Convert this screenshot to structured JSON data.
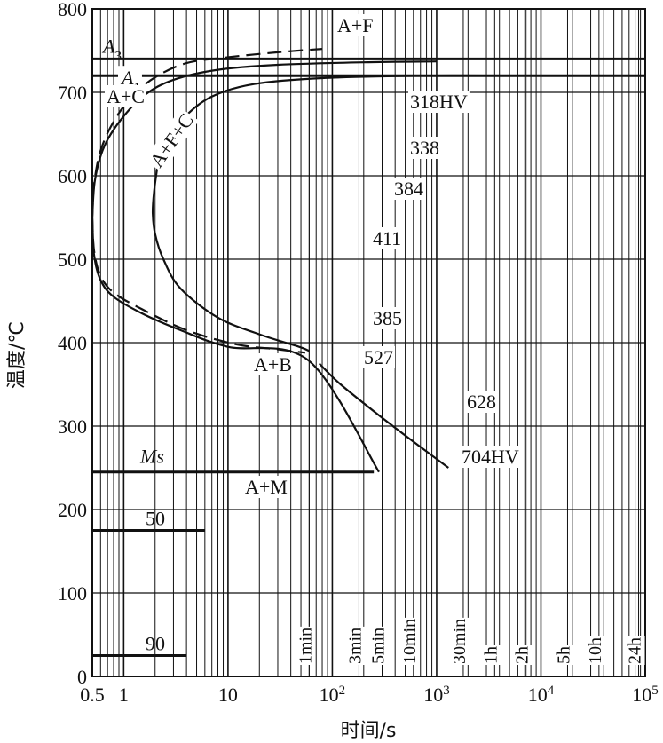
{
  "chart_data": {
    "type": "line",
    "x_scale": "log",
    "xlim": [
      0.5,
      100000
    ],
    "ylim": [
      0,
      800
    ],
    "xlabel": "时间/s",
    "ylabel": "温度/℃",
    "x_tick_labels": [
      {
        "x": 0.5,
        "label": "0.5"
      },
      {
        "x": 1,
        "label": "1"
      },
      {
        "x": 10,
        "label": "10"
      },
      {
        "x": 100,
        "label": "10",
        "sup": "2"
      },
      {
        "x": 1000,
        "label": "10",
        "sup": "3"
      },
      {
        "x": 10000,
        "label": "10",
        "sup": "4"
      },
      {
        "x": 100000,
        "label": "10",
        "sup": "5"
      }
    ],
    "y_ticks": [
      0,
      100,
      200,
      300,
      400,
      500,
      600,
      700,
      800
    ],
    "time_marks": [
      {
        "x": 60,
        "label": "1min"
      },
      {
        "x": 180,
        "label": "3min"
      },
      {
        "x": 300,
        "label": "5min"
      },
      {
        "x": 600,
        "label": "10min"
      },
      {
        "x": 1800,
        "label": "30min"
      },
      {
        "x": 3600,
        "label": "1h"
      },
      {
        "x": 7200,
        "label": "2h"
      },
      {
        "x": 18000,
        "label": "5h"
      },
      {
        "x": 36000,
        "label": "10h"
      },
      {
        "x": 86400,
        "label": "24h"
      }
    ],
    "horizontal_lines": [
      {
        "name": "A3",
        "base": "A",
        "sub": "3",
        "y": 740,
        "x_from": 0.5,
        "x_to": 100000
      },
      {
        "name": "A1",
        "base": "A",
        "sub": "1",
        "y": 720,
        "x_from": 0.5,
        "x_to": 100000
      },
      {
        "name": "Ms",
        "y": 245,
        "x_from": 0.5,
        "x_to": 250
      },
      {
        "name": "50",
        "y": 175,
        "x_from": 0.5,
        "x_to": 6
      },
      {
        "name": "90",
        "y": 25,
        "x_from": 0.5,
        "x_to": 4
      }
    ],
    "series": [
      {
        "style": "dashed",
        "points": [
          [
            0.5,
            550
          ],
          [
            0.52,
            590
          ],
          [
            0.6,
            630
          ],
          [
            0.8,
            665
          ],
          [
            1.2,
            695
          ],
          [
            2,
            718
          ],
          [
            4,
            735
          ],
          [
            10,
            742
          ],
          [
            30,
            748
          ],
          [
            80,
            752
          ]
        ]
      },
      {
        "style": "dashed",
        "points": [
          [
            0.5,
            550
          ],
          [
            0.52,
            510
          ],
          [
            0.6,
            480
          ],
          [
            0.8,
            460
          ],
          [
            1.5,
            440
          ],
          [
            4,
            415
          ],
          [
            12,
            398
          ],
          [
            30,
            392
          ],
          [
            55,
            388
          ]
        ]
      },
      {
        "style": "solid",
        "points": [
          [
            0.5,
            550
          ],
          [
            0.53,
            595
          ],
          [
            0.65,
            635
          ],
          [
            0.95,
            668
          ],
          [
            1.6,
            697
          ],
          [
            3,
            715
          ],
          [
            8,
            727
          ],
          [
            30,
            733
          ],
          [
            200,
            736
          ],
          [
            1000,
            737
          ]
        ]
      },
      {
        "style": "solid",
        "points": [
          [
            0.5,
            550
          ],
          [
            0.52,
            505
          ],
          [
            0.6,
            475
          ],
          [
            0.8,
            455
          ],
          [
            1.5,
            435
          ],
          [
            3.5,
            415
          ],
          [
            10,
            395
          ],
          [
            60,
            378
          ],
          [
            280,
            245
          ]
        ]
      },
      {
        "style": "solid",
        "points": [
          [
            2.1,
            610
          ],
          [
            1.95,
            580
          ],
          [
            1.9,
            555
          ],
          [
            2,
            530
          ],
          [
            2.4,
            500
          ],
          [
            3.5,
            465
          ],
          [
            8,
            430
          ],
          [
            20,
            410
          ],
          [
            48,
            395
          ],
          [
            60,
            390
          ]
        ]
      },
      {
        "style": "solid",
        "points": [
          [
            2.1,
            610
          ],
          [
            2.5,
            640
          ],
          [
            3.8,
            670
          ],
          [
            7,
            695
          ],
          [
            18,
            710
          ],
          [
            80,
            717
          ],
          [
            800,
            720
          ],
          [
            5000,
            720
          ]
        ]
      },
      {
        "style": "solid",
        "points": [
          [
            75,
            375
          ],
          [
            120,
            350
          ],
          [
            300,
            310
          ],
          [
            700,
            275
          ],
          [
            1300,
            250
          ]
        ]
      }
    ],
    "region_labels": [
      "A+F",
      "A+C",
      "A+F+C",
      "A+B",
      "A+M"
    ],
    "hardness_labels": [
      "318HV",
      "338",
      "384",
      "411",
      "385",
      "527",
      "628",
      "704HV"
    ]
  }
}
